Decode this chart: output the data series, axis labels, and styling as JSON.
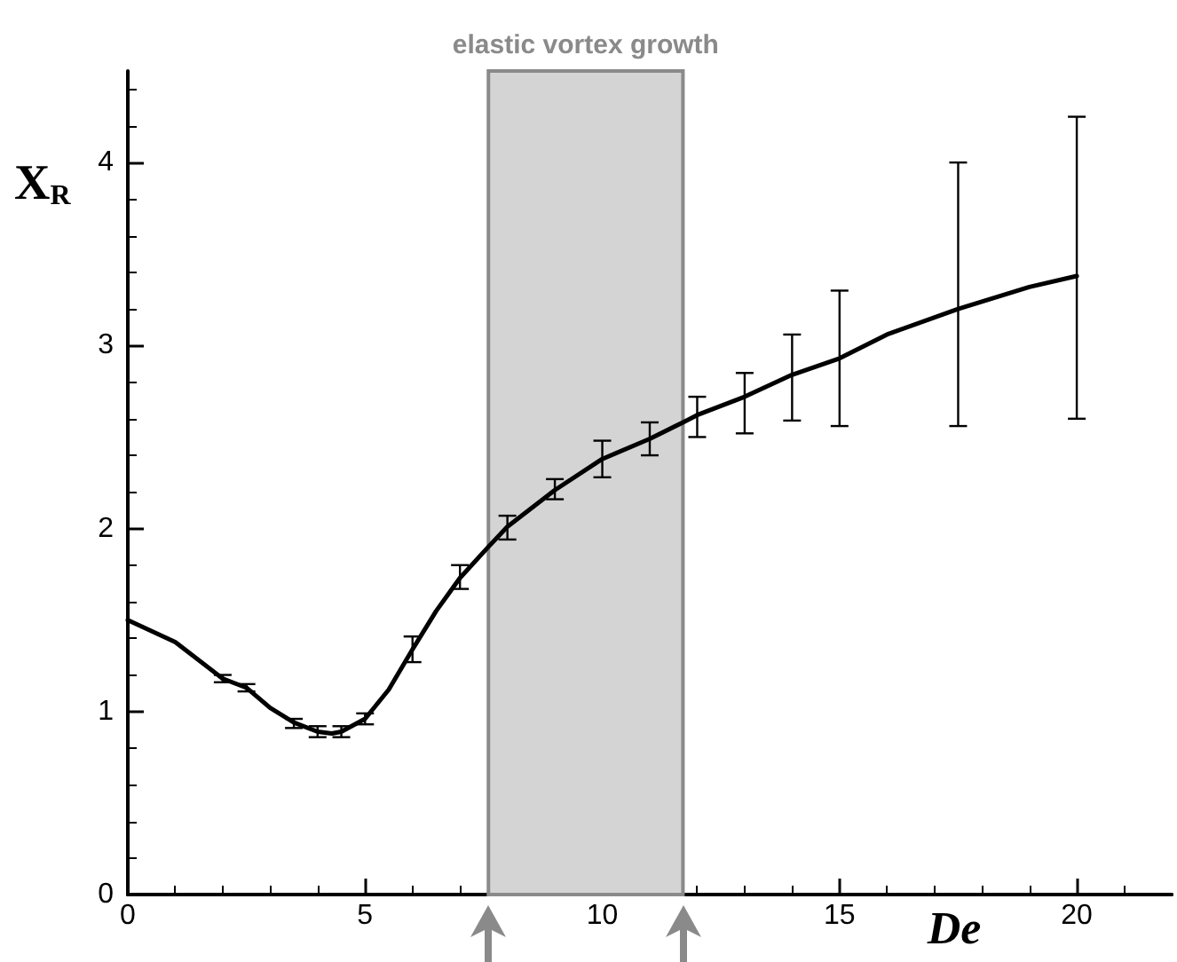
{
  "chart_data": {
    "type": "line",
    "xlabel": "De",
    "ylabel": "X$_{R}$",
    "xlim": [
      0,
      22
    ],
    "xticks": [
      0,
      5,
      10,
      15,
      20
    ],
    "ylim": [
      0,
      4.5
    ],
    "yticks": [
      0,
      1,
      2,
      3,
      4
    ],
    "grid": false,
    "bands": [
      {
        "axis": "x",
        "from": 7.6,
        "to": 11.7,
        "label": "elastic vortex growth",
        "color": "#d4d4d4"
      }
    ],
    "series": [
      {
        "color": "#000000",
        "marker": "none",
        "x": [
          0,
          1,
          2,
          2.5,
          3,
          3.5,
          4,
          4.3,
          4.5,
          5,
          5.5,
          6,
          6.5,
          7,
          7.6,
          8,
          9,
          10,
          11,
          11.7,
          12,
          13,
          14,
          15,
          16,
          17.5,
          19,
          20
        ],
        "values": [
          1.5,
          1.38,
          1.18,
          1.13,
          1.02,
          0.94,
          0.89,
          0.88,
          0.89,
          0.96,
          1.12,
          1.34,
          1.55,
          1.73,
          1.9,
          2.01,
          2.21,
          2.38,
          2.49,
          2.58,
          2.62,
          2.72,
          2.84,
          2.93,
          3.06,
          3.2,
          3.32,
          3.38
        ],
        "errors": [
          null,
          null,
          [
            1.16,
            1.2
          ],
          [
            1.11,
            1.15
          ],
          null,
          [
            0.91,
            0.96
          ],
          [
            0.86,
            0.92
          ],
          null,
          [
            0.86,
            0.92
          ],
          [
            0.93,
            0.99
          ],
          null,
          [
            1.27,
            1.41
          ],
          null,
          [
            1.67,
            1.8
          ],
          null,
          [
            1.94,
            2.07
          ],
          [
            2.16,
            2.27
          ],
          [
            2.28,
            2.48
          ],
          [
            2.4,
            2.58
          ],
          null,
          [
            2.5,
            2.72
          ],
          [
            2.52,
            2.85
          ],
          [
            2.59,
            3.06
          ],
          [
            2.56,
            3.3
          ],
          null,
          [
            2.56,
            4.0
          ],
          null,
          [
            2.6,
            4.25
          ]
        ]
      }
    ]
  }
}
